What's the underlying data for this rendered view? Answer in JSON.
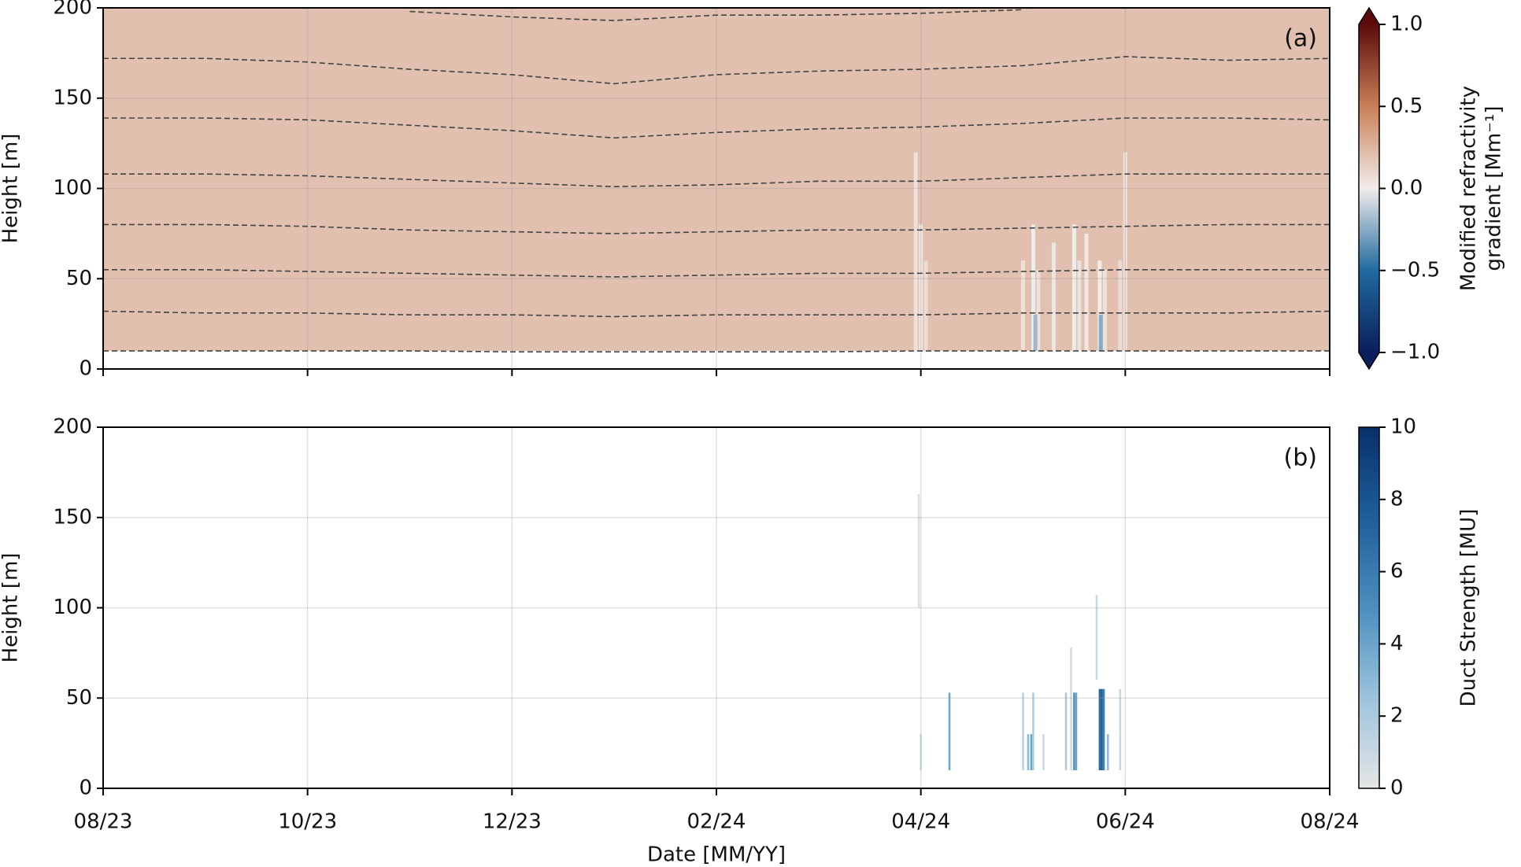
{
  "chart_data": [
    {
      "type": "heatmap",
      "annotation": "(a)",
      "ylabel": "Height [m]",
      "xlim": [
        0,
        12
      ],
      "xticks": [
        0,
        2,
        4,
        6,
        8,
        10,
        12
      ],
      "ylim": [
        0,
        200
      ],
      "yticks": [
        0,
        50,
        100,
        150,
        200
      ],
      "grid": true,
      "field": {
        "bottom": 10,
        "top": 200,
        "value": 0.2
      },
      "columns": {
        "x": [
          7.95,
          8.0,
          8.05,
          9.0,
          9.1,
          9.15,
          9.3,
          9.5,
          9.55,
          9.62,
          9.75,
          9.8,
          9.95,
          10.0,
          9.12,
          9.76
        ],
        "bottom": [
          10,
          10,
          10,
          10,
          10,
          10,
          10,
          10,
          10,
          10,
          10,
          10,
          10,
          10,
          10,
          10
        ],
        "top": [
          120,
          80,
          60,
          60,
          80,
          55,
          70,
          80,
          60,
          75,
          60,
          55,
          60,
          120,
          30,
          30
        ],
        "values": [
          0.05,
          0.02,
          0.08,
          0.05,
          0.0,
          0.05,
          0.03,
          0.0,
          0.05,
          0.02,
          0.0,
          0.05,
          0.08,
          0.05,
          -0.2,
          -0.25
        ]
      },
      "contours": {
        "color": "#444444",
        "x": [
          0,
          1,
          2,
          3,
          4,
          5,
          6,
          7,
          8,
          9,
          10,
          11,
          12
        ],
        "lines": [
          [
            10,
            10,
            10,
            10,
            9.5,
            9.5,
            9.5,
            9.5,
            10,
            10,
            10,
            10,
            10
          ],
          [
            32,
            31,
            31,
            30,
            30,
            29,
            30,
            30,
            30,
            31,
            31,
            31,
            32
          ],
          [
            55,
            55,
            54,
            53,
            52,
            51,
            52,
            53,
            53,
            54,
            55,
            55,
            55
          ],
          [
            80,
            80,
            79,
            77,
            76,
            75,
            76,
            77,
            77,
            78,
            79,
            80,
            80
          ],
          [
            108,
            108,
            107,
            105,
            103,
            101,
            102,
            104,
            104,
            106,
            108,
            108,
            108
          ],
          [
            139,
            139,
            138,
            135,
            132,
            128,
            131,
            133,
            134,
            136,
            139,
            139,
            138
          ],
          [
            172,
            172,
            170,
            166,
            163,
            158,
            163,
            165,
            166,
            168,
            173,
            171,
            172
          ],
          [
            null,
            null,
            null,
            198,
            195,
            193,
            196,
            196,
            197,
            199,
            null,
            null,
            null
          ]
        ]
      },
      "colorbar": {
        "label": [
          "Modified refractivity",
          "gradient [Mm⁻¹]"
        ],
        "lim": [
          -1,
          1
        ],
        "extend": "both",
        "ticks": [
          {
            "value": -1,
            "label": "−1.0"
          },
          {
            "value": -0.5,
            "label": "−0.5"
          },
          {
            "value": 0,
            "label": "0.0"
          },
          {
            "value": 0.5,
            "label": "0.5"
          },
          {
            "value": 1,
            "label": "1.0"
          }
        ],
        "colorscale": [
          "#0a1f5c",
          "#1f6aa0",
          "#f1ecea",
          "#c97f56",
          "#5c0a0a"
        ]
      }
    },
    {
      "type": "heatmap",
      "annotation": "(b)",
      "ylabel": "Height [m]",
      "xlabel": "Date [MM/YY]",
      "xlim": [
        0,
        12
      ],
      "xticks": [
        {
          "value": 0,
          "label": "08/23"
        },
        {
          "value": 2,
          "label": "10/23"
        },
        {
          "value": 4,
          "label": "12/23"
        },
        {
          "value": 6,
          "label": "02/24"
        },
        {
          "value": 8,
          "label": "04/24"
        },
        {
          "value": 10,
          "label": "06/24"
        },
        {
          "value": 12,
          "label": "08/24"
        }
      ],
      "ylim": [
        0,
        200
      ],
      "yticks": [
        0,
        50,
        100,
        150,
        200
      ],
      "grid": true,
      "columns": {
        "x": [
          7.98,
          8.0,
          8.28,
          9.0,
          9.05,
          9.08,
          9.1,
          9.2,
          9.42,
          9.47,
          9.5,
          9.52,
          9.72,
          9.75,
          9.77,
          9.79,
          9.83,
          9.95
        ],
        "bottom": [
          100,
          10,
          10,
          10,
          10,
          10,
          10,
          10,
          10,
          10,
          10,
          10,
          60,
          10,
          10,
          10,
          10,
          10
        ],
        "top": [
          163,
          30,
          53,
          53,
          30,
          30,
          53,
          30,
          53,
          78,
          53,
          53,
          107,
          55,
          55,
          55,
          30,
          55
        ],
        "values": [
          0.5,
          0.8,
          4,
          1.5,
          3,
          4,
          2,
          1,
          2,
          0.8,
          5,
          4,
          1,
          7,
          8,
          6,
          3,
          1
        ]
      },
      "colorbar": {
        "label": "Duct Strength [MU]",
        "lim": [
          0,
          10
        ],
        "extend": "neither",
        "ticks": [
          0,
          2,
          4,
          6,
          8,
          10
        ],
        "colorscale": [
          "#e6e6e6",
          "#9cc3dc",
          "#4a8fbf",
          "#1c5f9a",
          "#08306b"
        ]
      }
    }
  ]
}
